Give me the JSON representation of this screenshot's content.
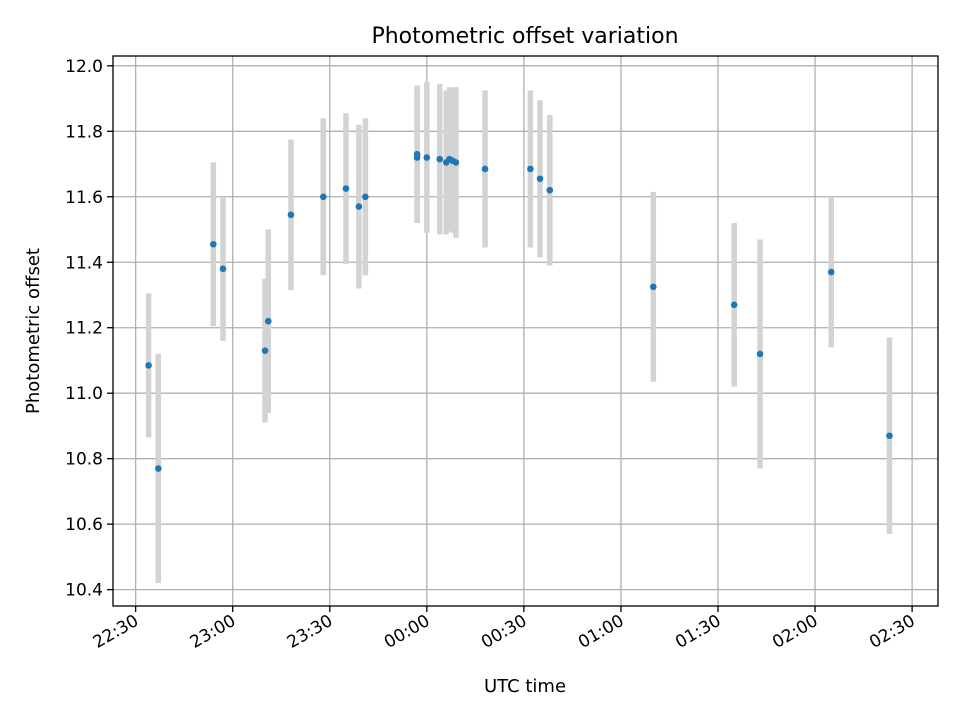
{
  "chart_data": {
    "type": "scatter",
    "title": "Photometric offset variation",
    "xlabel": "UTC time",
    "ylabel": "Photometric offset",
    "x_axis": "time",
    "xlim": [
      "22:23",
      "02:38"
    ],
    "ylim": [
      10.35,
      12.03
    ],
    "x_ticks": [
      "22:30",
      "23:00",
      "23:30",
      "00:00",
      "00:30",
      "01:00",
      "01:30",
      "02:00",
      "02:30"
    ],
    "y_ticks": [
      10.4,
      10.6,
      10.8,
      11.0,
      11.2,
      11.4,
      11.6,
      11.8,
      12.0
    ],
    "grid": true,
    "colors": {
      "point": "#1f77b4",
      "errorbar": "#d3d3d3"
    },
    "series": [
      {
        "points": [
          {
            "x": "22:34",
            "y": 11.085,
            "yerr": 0.22
          },
          {
            "x": "22:37",
            "y": 10.77,
            "yerr": 0.35
          },
          {
            "x": "22:54",
            "y": 11.455,
            "yerr": 0.25
          },
          {
            "x": "22:57",
            "y": 11.38,
            "yerr": 0.22
          },
          {
            "x": "23:10",
            "y": 11.13,
            "yerr": 0.22
          },
          {
            "x": "23:11",
            "y": 11.22,
            "yerr": 0.28
          },
          {
            "x": "23:18",
            "y": 11.545,
            "yerr": 0.23
          },
          {
            "x": "23:28",
            "y": 11.6,
            "yerr": 0.24
          },
          {
            "x": "23:35",
            "y": 11.625,
            "yerr": 0.23
          },
          {
            "x": "23:39",
            "y": 11.57,
            "yerr": 0.25
          },
          {
            "x": "23:41",
            "y": 11.6,
            "yerr": 0.24
          },
          {
            "x": "23:57",
            "y": 11.72,
            "yerr": 0.2
          },
          {
            "x": "23:57",
            "y": 11.73,
            "yerr": 0.21
          },
          {
            "x": "00:00",
            "y": 11.72,
            "yerr": 0.23
          },
          {
            "x": "00:04",
            "y": 11.715,
            "yerr": 0.23
          },
          {
            "x": "00:06",
            "y": 11.705,
            "yerr": 0.22
          },
          {
            "x": "00:07",
            "y": 11.715,
            "yerr": 0.22
          },
          {
            "x": "00:08",
            "y": 11.71,
            "yerr": 0.22
          },
          {
            "x": "00:09",
            "y": 11.705,
            "yerr": 0.23
          },
          {
            "x": "00:18",
            "y": 11.685,
            "yerr": 0.24
          },
          {
            "x": "00:32",
            "y": 11.685,
            "yerr": 0.24
          },
          {
            "x": "00:35",
            "y": 11.655,
            "yerr": 0.24
          },
          {
            "x": "00:38",
            "y": 11.62,
            "yerr": 0.23
          },
          {
            "x": "01:10",
            "y": 11.325,
            "yerr": 0.29
          },
          {
            "x": "01:35",
            "y": 11.27,
            "yerr": 0.25
          },
          {
            "x": "01:43",
            "y": 11.12,
            "yerr": 0.35
          },
          {
            "x": "02:05",
            "y": 11.37,
            "yerr": 0.23
          },
          {
            "x": "02:23",
            "y": 10.87,
            "yerr": 0.3
          }
        ]
      }
    ]
  }
}
